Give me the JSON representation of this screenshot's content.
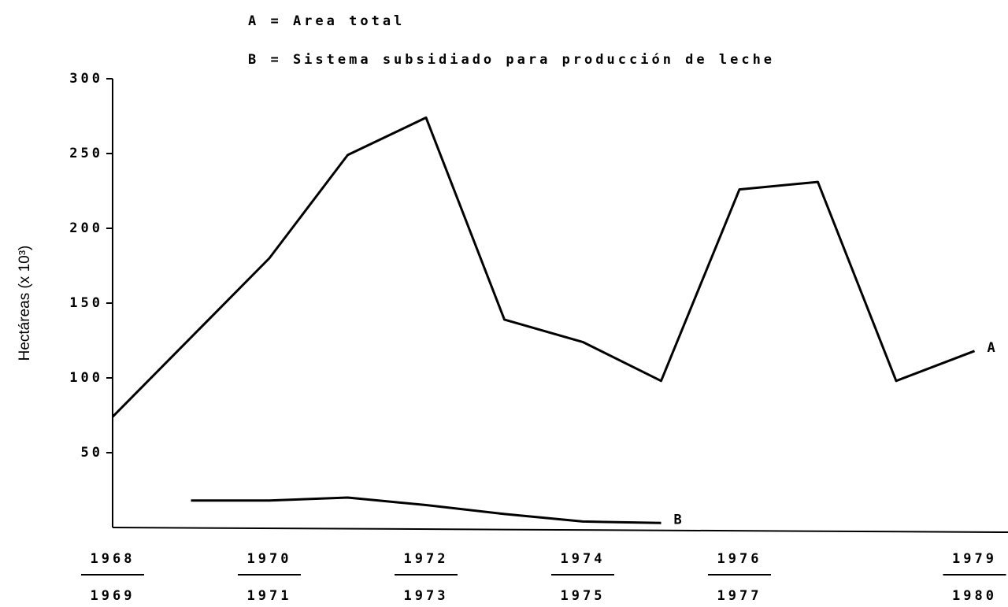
{
  "chart_data": {
    "type": "line",
    "legend_entries": [
      "A = Area total",
      "B = Sistema subsidiado para producción de leche"
    ],
    "y_label": "Hectáreas   (x 10³)",
    "categories": [
      [
        "1968",
        "1969"
      ],
      null,
      [
        "1970",
        "1971"
      ],
      null,
      [
        "1972",
        "1973"
      ],
      null,
      [
        "1974",
        "1975"
      ],
      null,
      [
        "1976",
        "1977"
      ],
      null,
      null,
      [
        "1979",
        "1980"
      ]
    ],
    "series": [
      {
        "name": "A",
        "color": "#000000",
        "values": [
          74,
          127,
          180,
          249,
          274,
          139,
          124,
          98,
          226,
          231,
          98,
          118
        ]
      },
      {
        "name": "B",
        "color": "#000000",
        "values": [
          null,
          18,
          18,
          20,
          15,
          9,
          4,
          3,
          null,
          null,
          null,
          null
        ]
      }
    ],
    "ylim": [
      0,
      300
    ],
    "yticks": [
      50,
      100,
      150,
      200,
      250,
      300
    ]
  }
}
